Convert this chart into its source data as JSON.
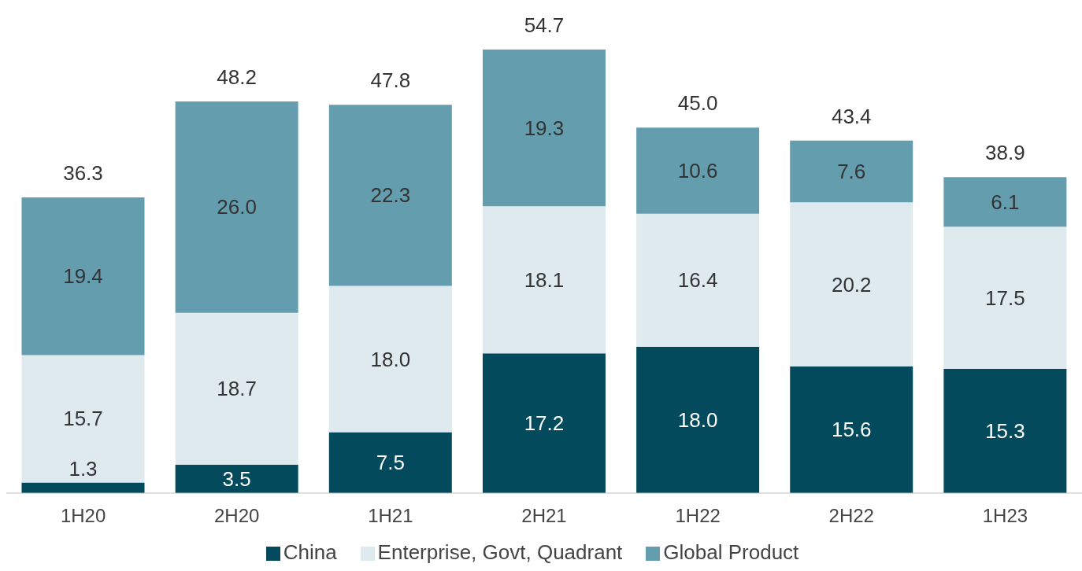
{
  "chart_data": {
    "type": "bar",
    "stacked": true,
    "tick_labels": "x",
    "legend": "bottom",
    "categories": [
      "1H20",
      "2H20",
      "1H21",
      "2H21",
      "1H22",
      "2H22",
      "1H23"
    ],
    "series": [
      {
        "name": "China",
        "color": "#034b5c",
        "values": [
          1.3,
          3.5,
          7.5,
          17.2,
          18.0,
          15.6,
          15.3
        ],
        "value_labels": [
          "1.3",
          "3.5",
          "7.5",
          "17.2",
          "18.0",
          "15.6",
          "15.3"
        ]
      },
      {
        "name": "Enterprise, Govt, Quadrant",
        "color": "#deeaee",
        "values": [
          15.7,
          18.7,
          18.0,
          18.1,
          16.4,
          20.2,
          17.5
        ],
        "value_labels": [
          "15.7",
          "18.7",
          "18.0",
          "18.1",
          "16.4",
          "20.2",
          "17.5"
        ]
      },
      {
        "name": "Global Product",
        "color": "#639dae",
        "values": [
          19.4,
          26.0,
          22.3,
          19.3,
          10.6,
          7.6,
          6.1
        ],
        "value_labels": [
          "19.4",
          "26.0",
          "22.3",
          "19.3",
          "10.6",
          "7.6",
          "6.1"
        ]
      }
    ],
    "totals": [
      "36.3",
      "48.2",
      "47.8",
      "54.7",
      "45.0",
      "43.4",
      "38.9"
    ]
  }
}
